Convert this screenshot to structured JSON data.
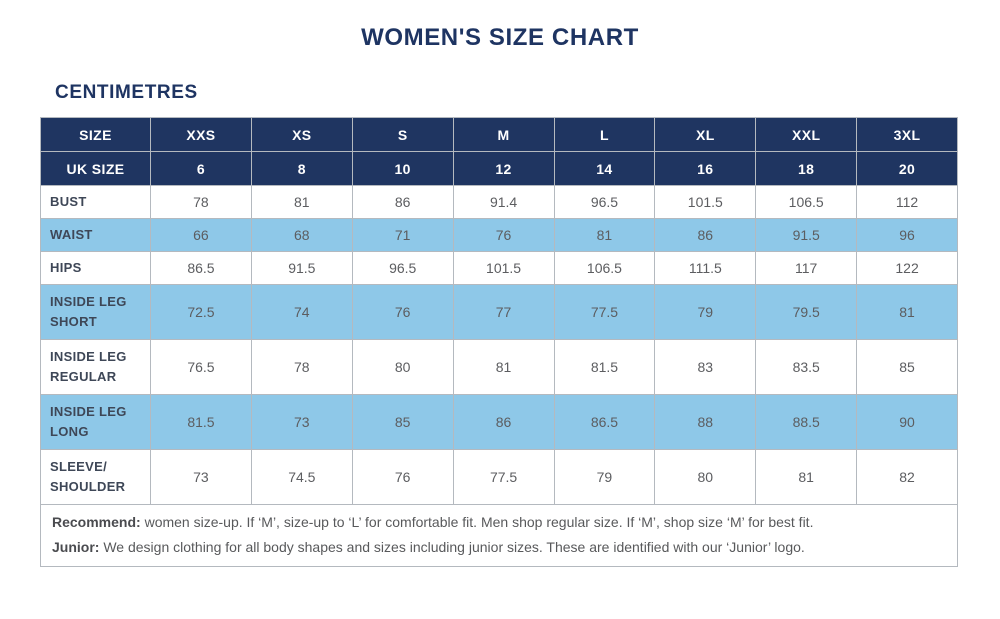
{
  "title": "WOMEN'S SIZE CHART",
  "subtitle": "CENTIMETRES",
  "colors": {
    "header_navy": "#1f3561",
    "highlight_blue": "#8ec8e8",
    "border_gray": "#b4b9bf",
    "title_navy": "#1e3462",
    "body_text_gray": "#5c5d60"
  },
  "chart_data": {
    "type": "table",
    "header_rows": [
      {
        "label": "SIZE",
        "values": [
          "XXS",
          "XS",
          "S",
          "M",
          "L",
          "XL",
          "XXL",
          "3XL"
        ]
      },
      {
        "label": "UK SIZE",
        "values": [
          "6",
          "8",
          "10",
          "12",
          "14",
          "16",
          "18",
          "20"
        ]
      }
    ],
    "rows": [
      {
        "label": "BUST",
        "values": [
          "78",
          "81",
          "86",
          "91.4",
          "96.5",
          "101.5",
          "106.5",
          "112"
        ],
        "highlight": false
      },
      {
        "label": "WAIST",
        "values": [
          "66",
          "68",
          "71",
          "76",
          "81",
          "86",
          "91.5",
          "96"
        ],
        "highlight": true
      },
      {
        "label": "HIPS",
        "values": [
          "86.5",
          "91.5",
          "96.5",
          "101.5",
          "106.5",
          "111.5",
          "117",
          "122"
        ],
        "highlight": false
      },
      {
        "label": "INSIDE LEG\nSHORT",
        "values": [
          "72.5",
          "74",
          "76",
          "77",
          "77.5",
          "79",
          "79.5",
          "81"
        ],
        "highlight": true
      },
      {
        "label": "INSIDE LEG\nREGULAR",
        "values": [
          "76.5",
          "78",
          "80",
          "81",
          "81.5",
          "83",
          "83.5",
          "85"
        ],
        "highlight": false
      },
      {
        "label": "INSIDE LEG\nLONG",
        "values": [
          "81.5",
          "73",
          "85",
          "86",
          "86.5",
          "88",
          "88.5",
          "90"
        ],
        "highlight": true
      },
      {
        "label": "SLEEVE/\nSHOULDER",
        "values": [
          "73",
          "74.5",
          "76",
          "77.5",
          "79",
          "80",
          "81",
          "82"
        ],
        "highlight": false
      }
    ]
  },
  "footer": {
    "line1_bold": "Recommend:",
    "line1_text": " women size-up. If ‘M’, size-up to ‘L’ for comfortable fit. Men shop regular size. If ‘M’, shop size ‘M’ for best fit.",
    "line2_bold": "Junior:",
    "line2_text": " We design clothing for all body shapes and sizes including junior sizes. These are identified with our ‘Junior’ logo."
  }
}
